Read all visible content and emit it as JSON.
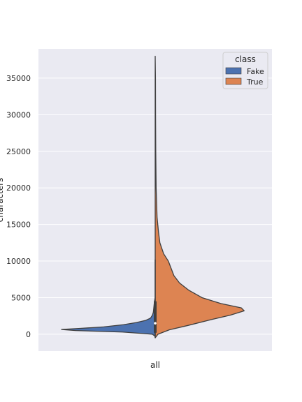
{
  "chart_data": {
    "type": "violin",
    "split": true,
    "categories": [
      "all"
    ],
    "xlabel": "",
    "ylabel": "characters",
    "ylim": [
      -2300,
      39000
    ],
    "yticks": [
      0,
      5000,
      10000,
      15000,
      20000,
      25000,
      30000,
      35000
    ],
    "grid": true,
    "legend": {
      "title": "class",
      "placement": "top-right"
    },
    "colors": {
      "Fake": "#4c72b0",
      "True": "#dd8452",
      "background": "#eaeaf2",
      "outline": "#3f3f3f"
    },
    "series": [
      {
        "name": "Fake",
        "side": "left",
        "color": "#4c72b0",
        "density": [
          [
            -300,
            0.0
          ],
          [
            0,
            0.03
          ],
          [
            300,
            0.35
          ],
          [
            500,
            0.85
          ],
          [
            650,
            1.0
          ],
          [
            800,
            0.8
          ],
          [
            1000,
            0.55
          ],
          [
            1300,
            0.34
          ],
          [
            1600,
            0.2
          ],
          [
            1900,
            0.1
          ],
          [
            2200,
            0.05
          ],
          [
            2600,
            0.03
          ],
          [
            3000,
            0.02
          ],
          [
            3600,
            0.015
          ],
          [
            4500,
            0.008
          ],
          [
            5000,
            0.0
          ]
        ]
      },
      {
        "name": "True",
        "side": "right",
        "color": "#dd8452",
        "density": [
          [
            -500,
            0.0
          ],
          [
            0,
            0.03
          ],
          [
            600,
            0.15
          ],
          [
            1200,
            0.35
          ],
          [
            2000,
            0.6
          ],
          [
            2600,
            0.8
          ],
          [
            3200,
            0.95
          ],
          [
            3600,
            0.92
          ],
          [
            4200,
            0.7
          ],
          [
            5000,
            0.5
          ],
          [
            6000,
            0.36
          ],
          [
            7000,
            0.26
          ],
          [
            8000,
            0.2
          ],
          [
            9000,
            0.17
          ],
          [
            10000,
            0.14
          ],
          [
            11000,
            0.09
          ],
          [
            12500,
            0.05
          ],
          [
            14000,
            0.035
          ],
          [
            16000,
            0.02
          ],
          [
            20000,
            0.01
          ],
          [
            25000,
            0.006
          ],
          [
            30000,
            0.004
          ],
          [
            35000,
            0.003
          ],
          [
            38000,
            0.0
          ]
        ]
      }
    ],
    "box": {
      "whisker_low": -500,
      "q1": 200,
      "median": 1500,
      "q3": 4500,
      "whisker_high": 10200
    }
  }
}
